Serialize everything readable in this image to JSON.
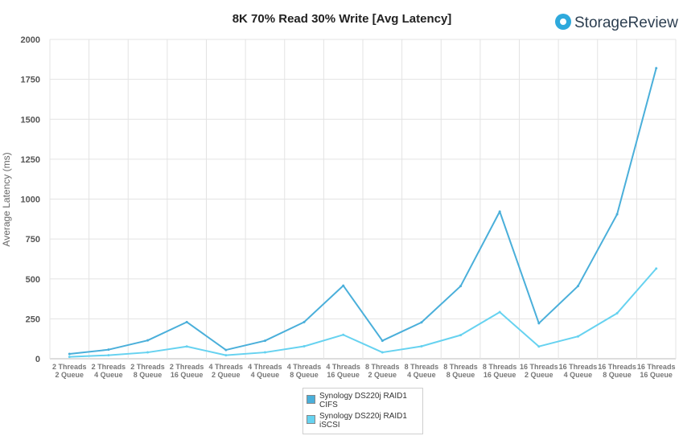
{
  "logo": {
    "text": "StorageReview"
  },
  "chart_data": {
    "type": "line",
    "title": "8K 70% Read 30% Write [Avg Latency]",
    "ylabel": "Average Latency (ms)",
    "xlabel": "",
    "ylim": [
      0,
      2000
    ],
    "yticks": [
      "0",
      "250",
      "500",
      "750",
      "1000",
      "1250",
      "1500",
      "1750",
      "2000"
    ],
    "categories": [
      [
        "2 Threads",
        "2 Queue"
      ],
      [
        "2 Threads",
        "4 Queue"
      ],
      [
        "2 Threads",
        "8 Queue"
      ],
      [
        "2 Threads",
        "16 Queue"
      ],
      [
        "4 Threads",
        "2 Queue"
      ],
      [
        "4 Threads",
        "4 Queue"
      ],
      [
        "4 Threads",
        "8 Queue"
      ],
      [
        "4 Threads",
        "16 Queue"
      ],
      [
        "8 Threads",
        "2 Queue"
      ],
      [
        "8 Threads",
        "4 Queue"
      ],
      [
        "8 Threads",
        "8 Queue"
      ],
      [
        "8 Threads",
        "16 Queue"
      ],
      [
        "16 Threads",
        "2 Queue"
      ],
      [
        "16 Threads",
        "4 Queue"
      ],
      [
        "16 Threads",
        "8 Queue"
      ],
      [
        "16 Threads",
        "16 Queue"
      ]
    ],
    "grid": true,
    "legend_position": "bottom",
    "series": [
      {
        "name_lines": [
          "Synology DS220j RAID1",
          "CIFS"
        ],
        "color": "#4aafda",
        "values": [
          30,
          57,
          115,
          230,
          55,
          113,
          230,
          458,
          113,
          228,
          455,
          922,
          222,
          455,
          905,
          1820
        ]
      },
      {
        "name_lines": [
          "Synology DS220j RAID1",
          "iSCSI"
        ],
        "color": "#66d2f0",
        "values": [
          12,
          22,
          40,
          77,
          22,
          40,
          78,
          150,
          40,
          78,
          148,
          292,
          77,
          140,
          285,
          565
        ]
      }
    ]
  }
}
